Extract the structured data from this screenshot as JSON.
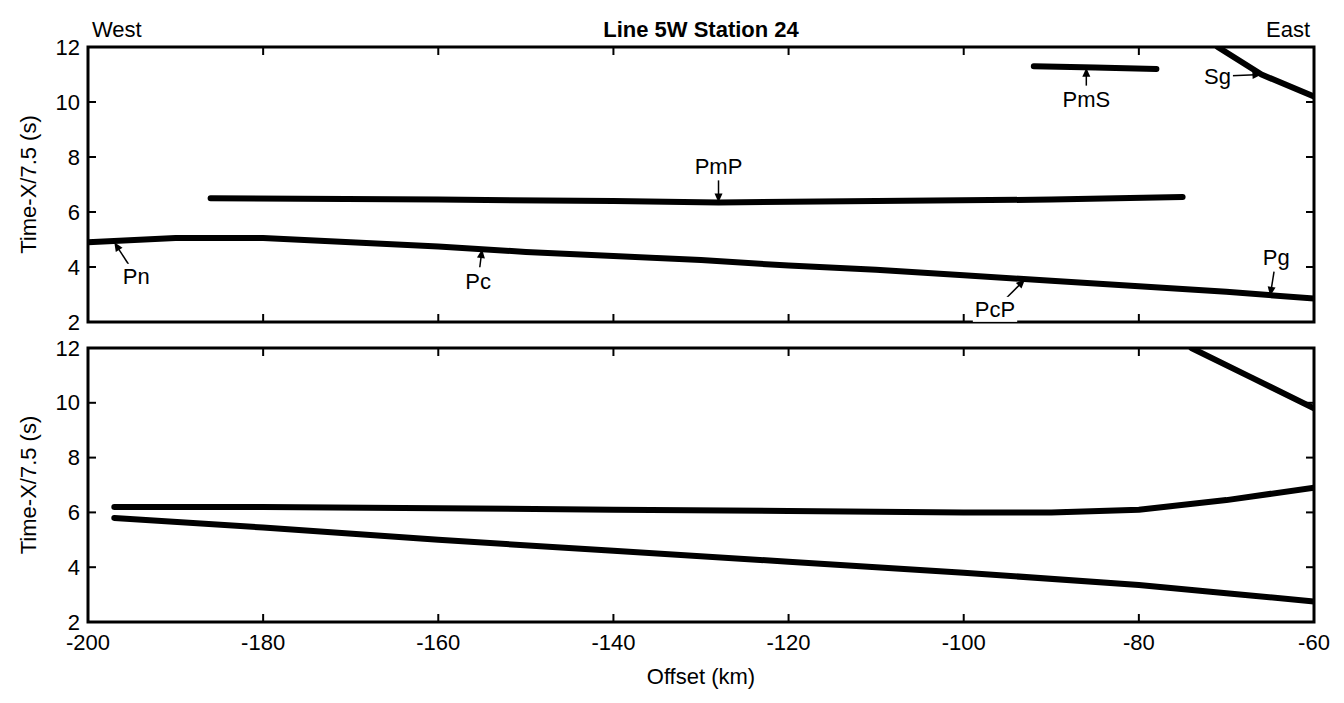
{
  "chart_data": [
    {
      "type": "line",
      "title": "Line 5W Station 24",
      "direction_labels": [
        "West",
        "East"
      ],
      "y_label": "Time-X/7.5 (s)",
      "xlim": [
        -200,
        -60
      ],
      "ylim": [
        2,
        12
      ],
      "xticks": [
        -200,
        -180,
        -160,
        -140,
        -120,
        -100,
        -80,
        -60
      ],
      "yticks": [
        2,
        4,
        6,
        8,
        10,
        12
      ],
      "tick_labels": "y",
      "series": [
        {
          "color": "#000000",
          "x": [
            -200,
            -190,
            -180,
            -170,
            -160,
            -150,
            -140,
            -130,
            -120,
            -110,
            -100,
            -90,
            -80,
            -70,
            -60
          ],
          "values": [
            4.9,
            5.05,
            5.05,
            4.9,
            4.75,
            4.55,
            4.4,
            4.25,
            4.05,
            3.9,
            3.7,
            3.5,
            3.3,
            3.1,
            2.85
          ]
        },
        {
          "color": "#000000",
          "x": [
            -186,
            -160,
            -140,
            -128,
            -110,
            -90,
            -75
          ],
          "values": [
            6.5,
            6.45,
            6.4,
            6.35,
            6.4,
            6.45,
            6.55
          ]
        },
        {
          "color": "#000000",
          "x": [
            -92,
            -85,
            -78
          ],
          "values": [
            11.3,
            11.25,
            11.2
          ]
        },
        {
          "color": "#000000",
          "x": [
            -71,
            -66,
            -60
          ],
          "values": [
            12,
            11.0,
            10.2
          ]
        }
      ],
      "annotations": [
        {
          "text": "Pn",
          "x": -197,
          "y": 4.9
        },
        {
          "text": "Pc",
          "x": -155,
          "y": 4.65
        },
        {
          "text": "PmP",
          "x": -128,
          "y": 6.35
        },
        {
          "text": "PcP",
          "x": -93,
          "y": 3.55
        },
        {
          "text": "Pg",
          "x": -65,
          "y": 2.95
        },
        {
          "text": "PmS",
          "x": -86,
          "y": 11.25
        },
        {
          "text": "Sg",
          "x": -66,
          "y": 11.0
        }
      ]
    },
    {
      "type": "line",
      "y_label": "Time-X/7.5 (s)",
      "x_label": "Offset (km)",
      "xlim": [
        -200,
        -60
      ],
      "ylim": [
        2,
        12
      ],
      "xticks": [
        -200,
        -180,
        -160,
        -140,
        -120,
        -100,
        -80,
        -60
      ],
      "yticks": [
        2,
        4,
        6,
        8,
        10,
        12
      ],
      "tick_labels": true,
      "series": [
        {
          "color": "#000000",
          "x": [
            -197,
            -180,
            -160,
            -140,
            -120,
            -100,
            -80,
            -70,
            -60
          ],
          "values": [
            5.8,
            5.45,
            5.0,
            4.6,
            4.2,
            3.8,
            3.35,
            3.05,
            2.75
          ]
        },
        {
          "color": "#000000",
          "x": [
            -197,
            -180,
            -160,
            -140,
            -120,
            -100,
            -90,
            -80,
            -70,
            -60
          ],
          "values": [
            6.2,
            6.2,
            6.15,
            6.1,
            6.05,
            6.0,
            6.0,
            6.1,
            6.45,
            6.9
          ]
        },
        {
          "color": "#000000",
          "x": [
            -74,
            -67,
            -60
          ],
          "values": [
            12,
            10.9,
            9.8
          ]
        }
      ]
    }
  ]
}
